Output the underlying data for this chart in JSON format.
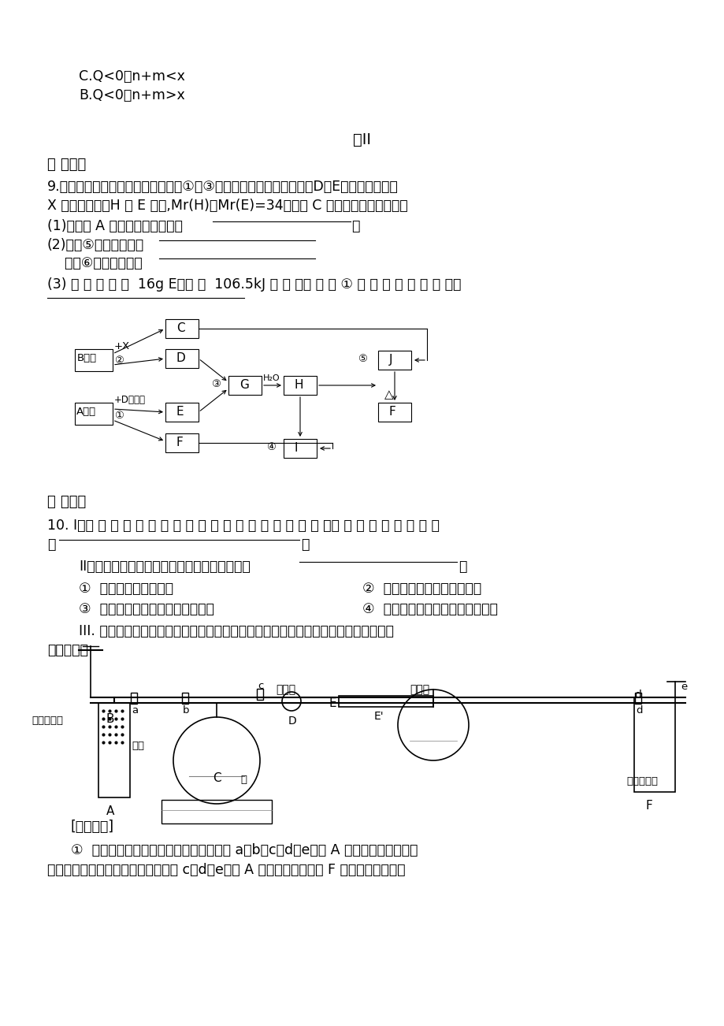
{
  "bg_color": "#ffffff",
  "line1": "C.Q<0、n+m<x",
  "line2": "B.Q<0、n+m>x",
  "title": "卷II",
  "sec2": "二 推导题",
  "q9_1": "9.根据下列框图关系填空，已知反应①、③是工业生产中的重要反应，D、E常温下为气体、",
  "q9_2": "X 为无色液体，H 与 E 式量,Mr(H)－Mr(E)=34，又知 C 焌色反应火焰呈黄色。",
  "q9_s1": "(1)化合物 A 中所包含的化学键有",
  "q9_s1end": "。",
  "q9_s2": "(2)反应⑤的离子方程式",
  "q9_s3": "    反应⑥的化学方程式",
  "q9_s4": "(3) 已 知 每 生 成  16g E，放 出  106.5kJ 热 量 ，则 反 应 ① 的 热 化 学 方 程 式 为：",
  "sec3": "三 实验题",
  "q10_1": "10. I．合 成 氨 工 业 对 化 学 的 国 防 工 业 具 有 重 要 意 义 。写 出 氨 的 两 种 重 要 用",
  "q10_2": "途",
  "q10_II": "II．实验室制备氨气，下列方法中适宜选用的是",
  "q10_o1": "①  固态氯化锤加热分解",
  "q10_o2": "②  固体氢氧化钓中滴加浓氨水",
  "q10_o3": "③  氯化锤溶液与氯氧化钓溶液共热",
  "q10_o4": "④  固态氯化锤与氢氧化钙混合加热",
  "q10_III1": "III. 为了在实验室利用工业原料制备少量氨气，有人设计了如下装置（图中夹持装置均",
  "q10_III2": "已略去）。",
  "exp_header": "[实验操作]",
  "exp1": "①  检查实验装置的气密性后，关闭弹簧夹 a、b、c、d、e。在 A 中加入锇粒，向长颈",
  "exp2": "漏斗注入一定量稀硫酸。打开弹簧夹 c、d、e，则 A 中有氢气发生。在 F 出口处收集氢气并"
}
